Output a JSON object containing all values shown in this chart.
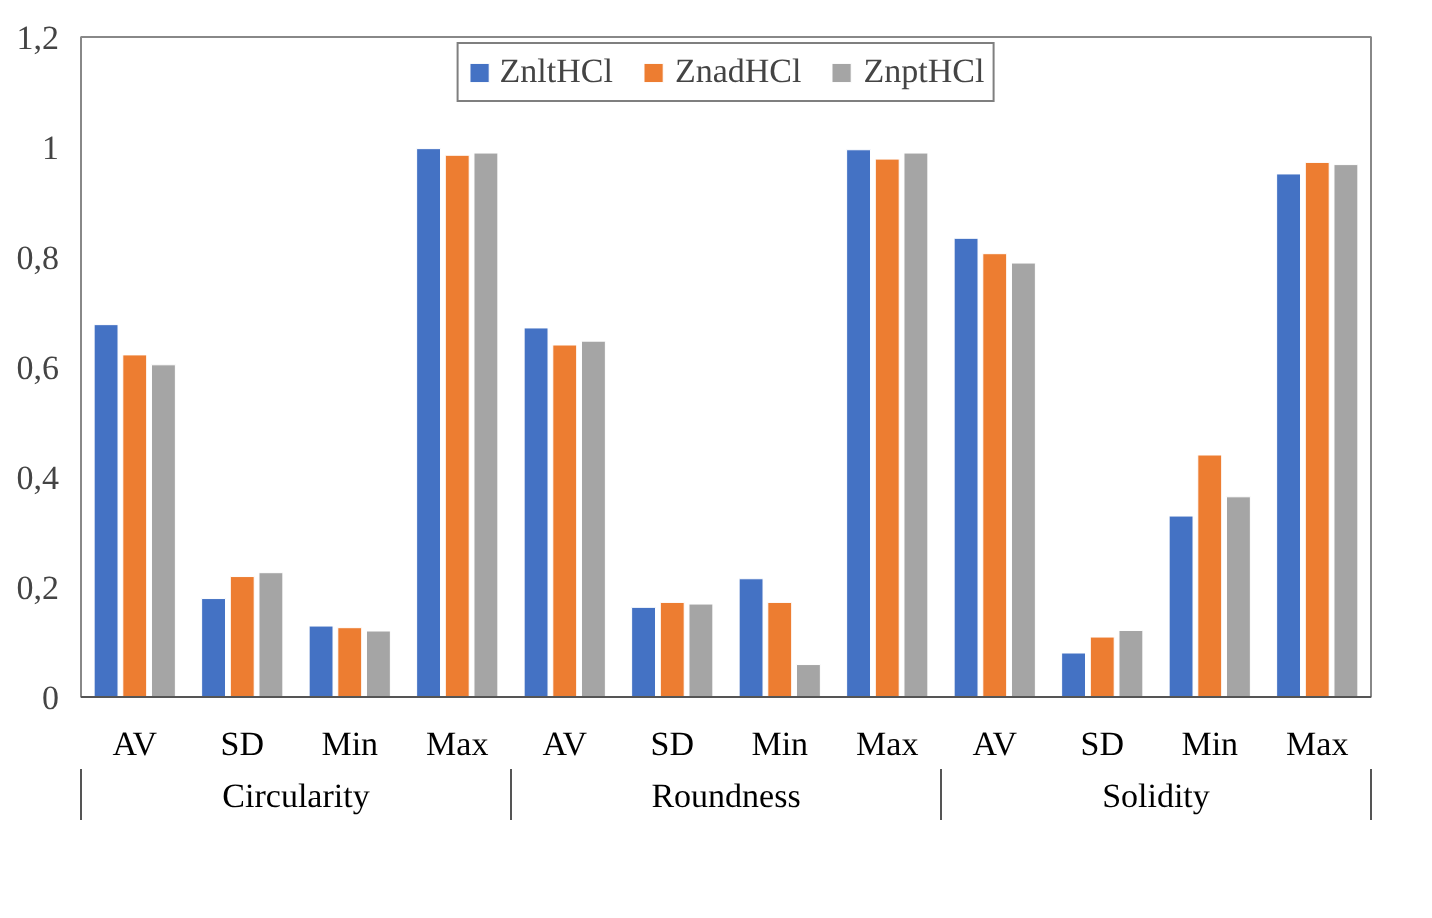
{
  "chart_data": {
    "type": "bar",
    "categories": [
      "AV",
      "SD",
      "Min",
      "Max",
      "AV",
      "SD",
      "Min",
      "Max",
      "AV",
      "SD",
      "Min",
      "Max"
    ],
    "annotations": [
      "Circularity",
      "Roundness",
      "Solidity"
    ],
    "series": [
      {
        "name": "ZnltHCl",
        "color": "#4472c4",
        "values": [
          0.677,
          0.179,
          0.129,
          0.997,
          0.671,
          0.163,
          0.215,
          0.995,
          0.834,
          0.08,
          0.329,
          0.951
        ]
      },
      {
        "name": "ZnadHCl",
        "color": "#ed7d31",
        "values": [
          0.622,
          0.219,
          0.126,
          0.985,
          0.64,
          0.172,
          0.172,
          0.978,
          0.806,
          0.109,
          0.44,
          0.972
        ]
      },
      {
        "name": "ZnptHCl",
        "color": "#a5a5a5",
        "values": [
          0.604,
          0.226,
          0.12,
          0.989,
          0.647,
          0.169,
          0.059,
          0.989,
          0.789,
          0.121,
          0.364,
          0.968
        ]
      }
    ],
    "ylim": [
      0,
      1.2
    ],
    "yticks": [
      0,
      {
        "value": 0.2,
        "label": "0,2"
      },
      {
        "value": 0.4,
        "label": "0,4"
      },
      {
        "value": 0.6,
        "label": "0,6"
      },
      {
        "value": 0.8,
        "label": "0,8"
      },
      1,
      {
        "value": 1.2,
        "label": "1,2"
      }
    ],
    "grid": false,
    "legend": "top"
  }
}
